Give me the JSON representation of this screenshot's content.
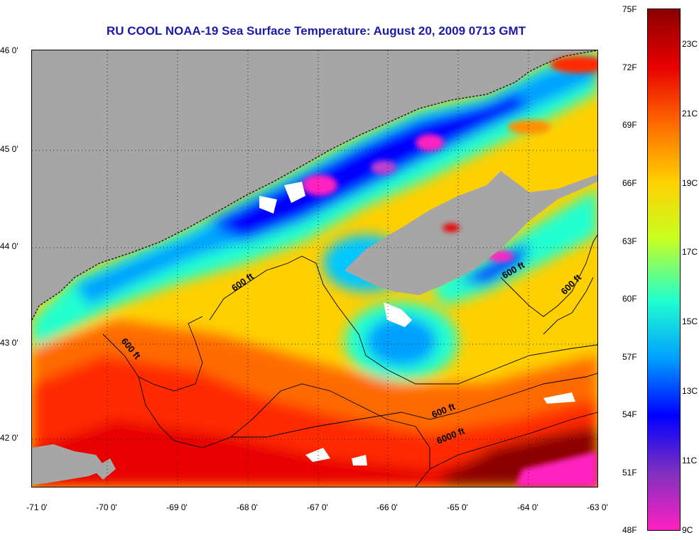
{
  "title": "RU COOL  NOAA-19  Sea Surface Temperature:  August 20, 2009 0713 GMT",
  "latitude_labels": [
    "46 0'",
    "45 0'",
    "44 0'",
    "43 0'",
    "42 0'"
  ],
  "longitude_labels": [
    "-71 0'",
    "-70 0'",
    "-69 0'",
    "-68 0'",
    "-67 0'",
    "-66 0'",
    "-65 0'",
    "-64 0'",
    "-63 0'"
  ],
  "contour_labels": [
    "600 ft",
    "600 ft",
    "600 ft",
    "600 ft",
    "600 ft",
    "6000 ft"
  ],
  "colorbar": {
    "fahrenheit_labels": [
      "75F",
      "72F",
      "69F",
      "66F",
      "63F",
      "60F",
      "57F",
      "54F",
      "51F",
      "48F"
    ],
    "celsius_labels": [
      "23C",
      "21C",
      "19C",
      "17C",
      "15C",
      "13C",
      "11C",
      "9C"
    ],
    "colors_top_to_bottom": [
      "#8b0000",
      "#e80000",
      "#ff6a00",
      "#ffd000",
      "#c8ff20",
      "#20ffd0",
      "#00a0ff",
      "#0000ff",
      "#8030c0",
      "#ff20c0"
    ]
  },
  "colors": {
    "land": "#a6a6a6",
    "title": "#1a1aaa",
    "cloud": "#ffffff"
  }
}
